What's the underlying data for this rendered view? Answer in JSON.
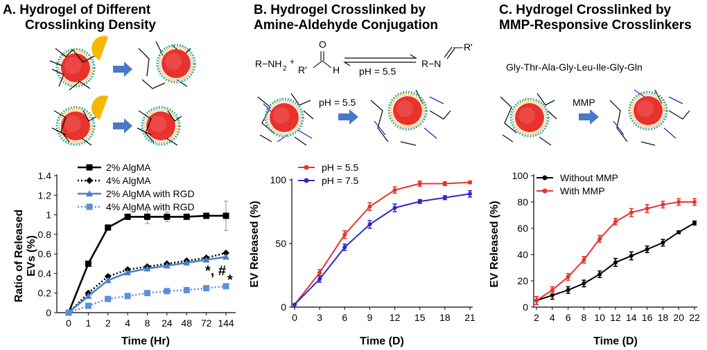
{
  "panels": {
    "a": {
      "title_line1": "A. Hydrogel of Different",
      "title_line2": "Crosslinking Density"
    },
    "b": {
      "title_line1": "B. Hydrogel Crosslinked by",
      "title_line2": "Amine-Aldehyde Conjugation"
    },
    "c": {
      "title_line1": "C. Hydrogel Crosslinked by",
      "title_line2": "MMP-Responsive Crosslinkers"
    }
  },
  "chemistry": {
    "amine": "R−NH",
    "amine_subscript": "2",
    "plus": "+",
    "aldehyde_o": "O",
    "aldehyde_r": "R'",
    "aldehyde_h": "H",
    "product_r": "R−N",
    "product_r2": "R'",
    "arrow_condition": "pH = 5.5",
    "schematic_condition": "pH = 5.5",
    "peptide": "Gly-Thr-Ala-Gly-Leu-Ile-Gly-Gln",
    "enzyme": "MMP"
  },
  "colors": {
    "black": "#000000",
    "blue": "#4a7fce",
    "light_blue": "#5a8fd8",
    "red": "#e8332d",
    "dark_blue": "#2929c8",
    "arrow_blue": "#4a78c8",
    "core_red": "#e8332d",
    "yellow": "#f5b800"
  },
  "chart_data": [
    {
      "id": "A",
      "type": "line",
      "categories": [
        "0",
        "1",
        "2",
        "4",
        "8",
        "24",
        "48",
        "72",
        "144"
      ],
      "xlabel": "Time (Hr)",
      "ylabel_line1": "Ratio of Released",
      "ylabel_line2": "EVs (%)",
      "ylim": [
        0,
        1.4
      ],
      "yticks": [
        "0",
        "0.2",
        "0.4",
        "0.6",
        "0.8",
        "1",
        "1.2",
        "1.4"
      ],
      "legend_position": "top",
      "series": [
        {
          "name": "2% AlgMA",
          "values": [
            0,
            0.5,
            0.87,
            0.98,
            0.98,
            0.98,
            0.98,
            0.99,
            0.99
          ],
          "errors": [
            0,
            0,
            0,
            0,
            0.07,
            0.05,
            0.02,
            0.02,
            0.15
          ],
          "color": "#000000",
          "dash": "solid",
          "marker": "square"
        },
        {
          "name": "4% AlgMA",
          "values": [
            0,
            0.2,
            0.37,
            0.44,
            0.47,
            0.5,
            0.53,
            0.56,
            0.61
          ],
          "color": "#000000",
          "dash": "dotted",
          "marker": "diamond"
        },
        {
          "name": "2% AlgMA with RGD",
          "values": [
            0,
            0.17,
            0.33,
            0.41,
            0.45,
            0.48,
            0.51,
            0.54,
            0.57
          ],
          "color": "#4a7fce",
          "dash": "solid",
          "marker": "triangle"
        },
        {
          "name": "4% AlgMA with RGD",
          "values": [
            0,
            0.07,
            0.14,
            0.17,
            0.2,
            0.22,
            0.23,
            0.25,
            0.27
          ],
          "color": "#5a8fd8",
          "dash": "dotted",
          "marker": "square"
        }
      ],
      "annotations": {
        "star": "*",
        "star_hash": "*, #"
      }
    },
    {
      "id": "B",
      "type": "line",
      "x": [
        0,
        3,
        6,
        9,
        12,
        15,
        18,
        21
      ],
      "xticks": [
        "0",
        "3",
        "6",
        "9",
        "12",
        "15",
        "18",
        "21"
      ],
      "xlabel": "Time (D)",
      "ylabel": "EV Released (%)",
      "ylim": [
        0,
        100
      ],
      "yticks": [
        "0",
        "50",
        "100"
      ],
      "legend_position": "top-left",
      "series": [
        {
          "name": "pH = 5.5",
          "values": [
            2,
            27,
            57,
            79,
            92,
            97,
            97,
            98
          ],
          "errors": [
            0,
            2.5,
            3,
            3,
            2.5,
            2,
            1.5,
            1
          ],
          "color": "#e8332d"
        },
        {
          "name": "pH = 7.5",
          "values": [
            2,
            22,
            47,
            65,
            78,
            83,
            86,
            89
          ],
          "errors": [
            0,
            2.5,
            2.5,
            3,
            3,
            1.5,
            1.5,
            2.5
          ],
          "color": "#2929c8"
        }
      ]
    },
    {
      "id": "C",
      "type": "line",
      "x": [
        2,
        4,
        6,
        8,
        10,
        12,
        14,
        16,
        18,
        20,
        22
      ],
      "xticks": [
        "2",
        "4",
        "6",
        "8",
        "10",
        "12",
        "14",
        "16",
        "18",
        "20",
        "22"
      ],
      "xlabel": "Time (D)",
      "ylabel": "EV Released (%)",
      "ylim": [
        0,
        100
      ],
      "yticks": [
        "0",
        "20",
        "40",
        "60",
        "80",
        "100"
      ],
      "legend_position": "top-left",
      "series": [
        {
          "name": "Without MMP",
          "values": [
            5,
            9,
            13,
            18,
            25,
            34,
            39,
            44,
            49,
            57,
            64
          ],
          "errors": [
            3,
            3,
            2.5,
            2.5,
            2.5,
            3,
            3,
            2.5,
            2.5,
            1,
            1.5
          ],
          "color": "#000000"
        },
        {
          "name": "With MMP",
          "values": [
            5,
            13,
            23,
            36,
            52,
            65,
            72,
            75,
            78,
            80,
            80
          ],
          "errors": [
            3,
            2.5,
            2.5,
            2.5,
            2.5,
            2.5,
            3,
            3,
            2.5,
            2.5,
            2.5
          ],
          "color": "#e8332d"
        }
      ]
    }
  ]
}
